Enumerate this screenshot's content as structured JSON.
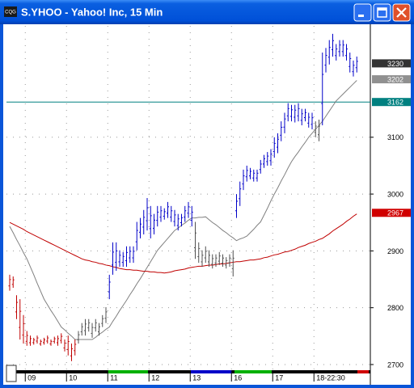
{
  "window": {
    "icon": "CQG"
  },
  "chart_data": {
    "type": "ohlc",
    "title": "S.YHOO - Yahoo! Inc, 15 Min",
    "categories": [
      null,
      null,
      null,
      null,
      null,
      "09",
      null,
      null,
      null,
      null,
      null,
      null,
      null,
      null,
      null,
      null,
      null,
      "10",
      null,
      null,
      null,
      null,
      null,
      null,
      null,
      null,
      null,
      null,
      null,
      "11",
      null,
      null,
      null,
      null,
      null,
      null,
      null,
      null,
      null,
      null,
      null,
      "12",
      null,
      null,
      null,
      null,
      null,
      null,
      null,
      null,
      null,
      null,
      null,
      "13",
      null,
      null,
      null,
      null,
      null,
      null,
      null,
      null,
      null,
      null,
      null,
      "16",
      null,
      null,
      null,
      null,
      null,
      null,
      null,
      null,
      null,
      null,
      null,
      "17",
      null,
      null,
      null,
      null,
      null,
      null,
      null,
      null,
      null,
      null,
      null,
      "18-22:30",
      null,
      null,
      null,
      null,
      null,
      null,
      null,
      null,
      null,
      null,
      null,
      null
    ],
    "ylim": [
      2690,
      3296
    ],
    "yticks": [
      2700,
      2800,
      2900,
      3000,
      3100
    ],
    "grid": true,
    "series": [
      {
        "high": [
          2858,
          2855,
          2822,
          2815,
          2787,
          2759,
          2751,
          2747,
          2751,
          2744,
          2747,
          2751,
          2744,
          2749,
          2751,
          2755,
          2744,
          2751,
          2737,
          2744,
          2759,
          2773,
          2780,
          2780,
          2773,
          2780,
          2773,
          2787,
          2801,
          2858,
          2915,
          2915,
          2901,
          2898,
          2908,
          2908,
          2908,
          2951,
          2958,
          2972,
          2993,
          2979,
          2965,
          2979,
          2979,
          2975,
          2986,
          2979,
          2972,
          2965,
          2965,
          2979,
          2986,
          2979,
          2951,
          2915,
          2901,
          2908,
          2901,
          2894,
          2894,
          2898,
          2894,
          2889,
          2894,
          2901,
          3000,
          3022,
          3043,
          3050,
          3046,
          3043,
          3043,
          3060,
          3069,
          3074,
          3079,
          3100,
          3107,
          3128,
          3143,
          3160,
          3157,
          3157,
          3160,
          3150,
          3150,
          3143,
          3143,
          3128,
          3131,
          3249,
          3257,
          3271,
          3282,
          3264,
          3271,
          3271,
          3264,
          3249,
          3235,
          3242
        ],
        "low": [
          2830,
          2835,
          2780,
          2744,
          2737,
          2733,
          2733,
          2735,
          2737,
          2733,
          2735,
          2737,
          2733,
          2737,
          2733,
          2737,
          2723,
          2716,
          2706,
          2716,
          2737,
          2751,
          2751,
          2758,
          2747,
          2758,
          2751,
          2766,
          2773,
          2815,
          2858,
          2865,
          2872,
          2872,
          2872,
          2879,
          2879,
          2901,
          2922,
          2929,
          2936,
          2922,
          2929,
          2943,
          2951,
          2955,
          2958,
          2951,
          2943,
          2936,
          2943,
          2951,
          2958,
          2943,
          2886,
          2879,
          2872,
          2879,
          2872,
          2869,
          2872,
          2875,
          2872,
          2869,
          2872,
          2855,
          2958,
          2979,
          3007,
          3022,
          3026,
          3022,
          3022,
          3036,
          3046,
          3050,
          3050,
          3064,
          3072,
          3093,
          3107,
          3128,
          3128,
          3126,
          3128,
          3121,
          3128,
          3117,
          3114,
          3100,
          3093,
          3121,
          3214,
          3228,
          3242,
          3235,
          3242,
          3242,
          3235,
          3214,
          3207,
          3214
        ],
        "colors": [
          "#c00000",
          "#c00000",
          "#c00000",
          "#c00000",
          "#c00000",
          "#c00000",
          "#c00000",
          "#c00000",
          "#c00000",
          "#c00000",
          "#c00000",
          "#c00000",
          "#c00000",
          "#c00000",
          "#c00000",
          "#c00000",
          "#c00000",
          "#c00000",
          "#c00000",
          "#c00000",
          "#505050",
          "#505050",
          "#505050",
          "#505050",
          "#505050",
          "#505050",
          "#505050",
          "#505050",
          "#505050",
          "#0000c8",
          "#0000c8",
          "#0000c8",
          "#0000c8",
          "#0000c8",
          "#0000c8",
          "#0000c8",
          "#0000c8",
          "#0000c8",
          "#0000c8",
          "#0000c8",
          "#0000c8",
          "#0000c8",
          "#0000c8",
          "#0000c8",
          "#0000c8",
          "#0000c8",
          "#0000c8",
          "#0000c8",
          "#0000c8",
          "#0000c8",
          "#0000c8",
          "#0000c8",
          "#0000c8",
          "#0000c8",
          "#505050",
          "#505050",
          "#505050",
          "#505050",
          "#505050",
          "#505050",
          "#505050",
          "#505050",
          "#505050",
          "#505050",
          "#505050",
          "#505050",
          "#0000c8",
          "#0000c8",
          "#0000c8",
          "#0000c8",
          "#0000c8",
          "#0000c8",
          "#0000c8",
          "#0000c8",
          "#0000c8",
          "#0000c8",
          "#0000c8",
          "#0000c8",
          "#0000c8",
          "#0000c8",
          "#0000c8",
          "#0000c8",
          "#0000c8",
          "#0000c8",
          "#0000c8",
          "#0000c8",
          "#0000c8",
          "#0000c8",
          "#0000c8",
          "#505050",
          "#505050",
          "#0000c8",
          "#0000c8",
          "#0000c8",
          "#0000c8",
          "#0000c8",
          "#0000c8",
          "#0000c8",
          "#0000c8",
          "#0000c8",
          "#0000c8",
          "#0000c8"
        ]
      },
      {
        "type": "line",
        "color": "#808080",
        "values": [
          2943,
          2932,
          2920,
          2909,
          2897,
          2886,
          2872,
          2858,
          2843,
          2829,
          2815,
          2805,
          2795,
          2786,
          2776,
          2766,
          2761,
          2755,
          2750,
          2744,
          2744,
          2744,
          2744,
          2744,
          2744,
          2748,
          2753,
          2757,
          2762,
          2766,
          2776,
          2785,
          2795,
          2804,
          2813,
          2823,
          2832,
          2842,
          2851,
          2861,
          2871,
          2881,
          2891,
          2901,
          2908,
          2915,
          2922,
          2929,
          2936,
          2940,
          2945,
          2949,
          2954,
          2958,
          2958,
          2959,
          2959,
          2960,
          2955,
          2950,
          2946,
          2941,
          2936,
          2932,
          2927,
          2923,
          2918,
          2921,
          2923,
          2926,
          2932,
          2938,
          2945,
          2951,
          2963,
          2975,
          2988,
          3000,
          3011,
          3023,
          3034,
          3046,
          3057,
          3066,
          3074,
          3083,
          3091,
          3100,
          3107,
          3114,
          3121,
          3128,
          3137,
          3146,
          3155,
          3164,
          3170,
          3176,
          3182,
          3188,
          3194,
          3200
        ]
      },
      {
        "type": "line",
        "color": "#c00000",
        "values": [
          2950,
          2947,
          2944,
          2941,
          2938,
          2934,
          2931,
          2928,
          2925,
          2922,
          2919,
          2916,
          2913,
          2910,
          2907,
          2904,
          2901,
          2898,
          2895,
          2892,
          2889,
          2886,
          2884,
          2883,
          2881,
          2880,
          2878,
          2877,
          2875,
          2874,
          2872,
          2871,
          2869,
          2868,
          2867,
          2867,
          2866,
          2866,
          2865,
          2864,
          2864,
          2863,
          2863,
          2862,
          2862,
          2861,
          2862,
          2863,
          2865,
          2866,
          2867,
          2868,
          2870,
          2871,
          2872,
          2873,
          2873,
          2874,
          2875,
          2875,
          2876,
          2877,
          2877,
          2878,
          2879,
          2880,
          2881,
          2881,
          2882,
          2883,
          2884,
          2884,
          2885,
          2886,
          2888,
          2889,
          2891,
          2893,
          2894,
          2896,
          2898,
          2899,
          2901,
          2903,
          2906,
          2908,
          2910,
          2913,
          2915,
          2917,
          2920,
          2922,
          2926,
          2930,
          2935,
          2939,
          2943,
          2947,
          2952,
          2956,
          2961,
          2965
        ]
      }
    ],
    "markers": [
      {
        "value": 3230,
        "color": "#333333"
      },
      {
        "value": 3202,
        "color": "#909090"
      },
      {
        "value": 3162,
        "color": "#008080",
        "line": true
      },
      {
        "value": 2967,
        "color": "#d00000"
      }
    ]
  }
}
